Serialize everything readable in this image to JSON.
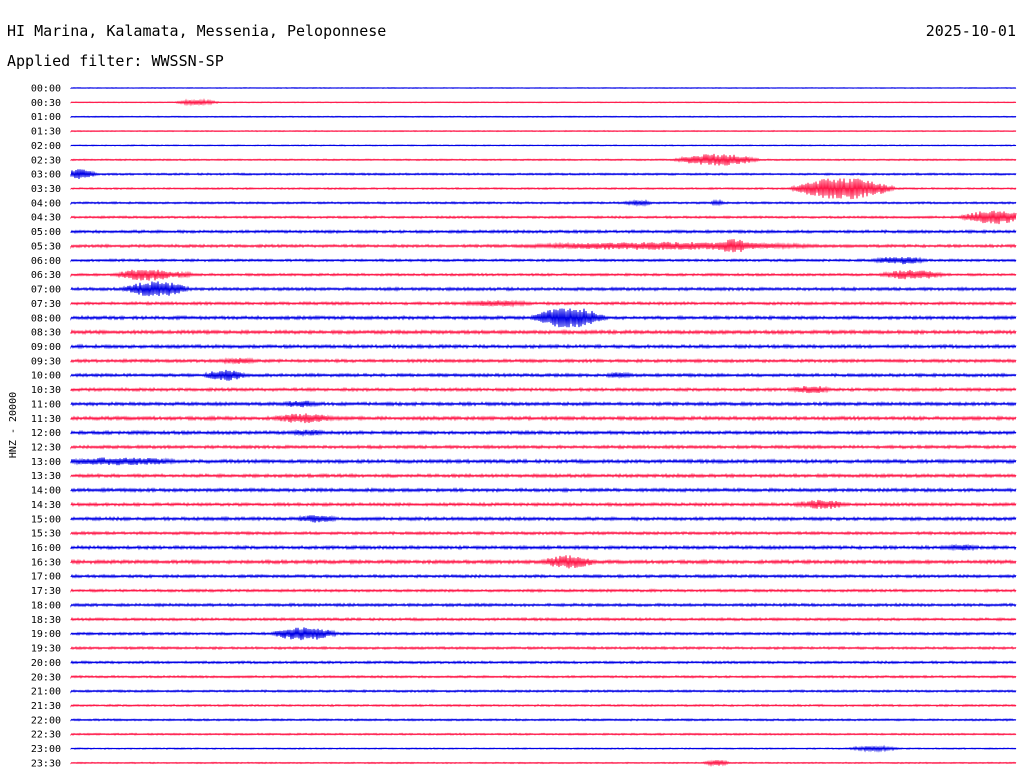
{
  "header": {
    "station": "HI Marina, Kalamata, Messenia, Peloponnese",
    "date": "2025-10-01",
    "filter": "Applied filter: WWSSN-SP"
  },
  "colors": {
    "even_row": "#0000e6",
    "odd_row": "#ff1a4a"
  },
  "chart_data": {
    "type": "line",
    "subtype": "helicorder",
    "ylabel": "HNZ - 20000",
    "row_labels": [
      "00:00",
      "00:30",
      "01:00",
      "01:30",
      "02:00",
      "02:30",
      "03:00",
      "03:30",
      "04:00",
      "04:30",
      "05:00",
      "05:30",
      "06:00",
      "06:30",
      "07:00",
      "07:30",
      "08:00",
      "08:30",
      "09:00",
      "09:30",
      "10:00",
      "10:30",
      "11:00",
      "11:30",
      "12:00",
      "12:30",
      "13:00",
      "13:30",
      "14:00",
      "14:30",
      "15:00",
      "15:30",
      "16:00",
      "16:30",
      "17:00",
      "17:30",
      "18:00",
      "18:30",
      "19:00",
      "19:30",
      "20:00",
      "20:30",
      "21:00",
      "21:30",
      "22:00",
      "22:30",
      "23:00",
      "23:30"
    ],
    "noise_level": [
      0.4,
      0.4,
      0.5,
      0.5,
      0.5,
      0.7,
      0.9,
      0.8,
      0.9,
      1.0,
      1.3,
      1.3,
      1.1,
      1.1,
      1.4,
      1.3,
      1.5,
      1.6,
      1.5,
      1.4,
      1.4,
      1.4,
      1.5,
      1.6,
      1.5,
      1.4,
      1.6,
      1.5,
      1.5,
      1.4,
      1.5,
      1.3,
      1.5,
      1.6,
      1.3,
      1.2,
      1.3,
      1.2,
      1.2,
      1.1,
      1.1,
      1.0,
      1.0,
      0.9,
      0.9,
      0.8,
      0.6,
      0.6
    ],
    "events": [
      {
        "row": "00:30",
        "minute": 4.0,
        "amplitude": 2.5,
        "duration": 0.8
      },
      {
        "row": "02:30",
        "minute": 20.5,
        "amplitude": 6,
        "duration": 1.5
      },
      {
        "row": "03:00",
        "minute": 0.3,
        "amplitude": 5,
        "duration": 0.6
      },
      {
        "row": "03:30",
        "minute": 24.5,
        "amplitude": 11,
        "duration": 1.8
      },
      {
        "row": "04:00",
        "minute": 18.0,
        "amplitude": 2.5,
        "duration": 0.6
      },
      {
        "row": "04:00",
        "minute": 20.5,
        "amplitude": 2.5,
        "duration": 0.3
      },
      {
        "row": "04:30",
        "minute": 29.3,
        "amplitude": 7,
        "duration": 1.2
      },
      {
        "row": "05:30",
        "minute": 19.0,
        "amplitude": 4,
        "duration": 6.0
      },
      {
        "row": "05:30",
        "minute": 21.0,
        "amplitude": 7,
        "duration": 0.8
      },
      {
        "row": "06:00",
        "minute": 26.3,
        "amplitude": 4,
        "duration": 1.0
      },
      {
        "row": "06:30",
        "minute": 2.4,
        "amplitude": 6,
        "duration": 1.2
      },
      {
        "row": "06:30",
        "minute": 3.5,
        "amplitude": 3,
        "duration": 0.5
      },
      {
        "row": "06:30",
        "minute": 26.7,
        "amplitude": 5,
        "duration": 1.2
      },
      {
        "row": "07:00",
        "minute": 2.7,
        "amplitude": 8,
        "duration": 1.2
      },
      {
        "row": "07:30",
        "minute": 13.5,
        "amplitude": 3,
        "duration": 1.5
      },
      {
        "row": "08:00",
        "minute": 15.8,
        "amplitude": 11,
        "duration": 1.3
      },
      {
        "row": "09:30",
        "minute": 5.3,
        "amplitude": 3,
        "duration": 0.8
      },
      {
        "row": "10:00",
        "minute": 4.9,
        "amplitude": 6,
        "duration": 0.8
      },
      {
        "row": "10:00",
        "minute": 17.4,
        "amplitude": 3,
        "duration": 0.5
      },
      {
        "row": "10:30",
        "minute": 23.5,
        "amplitude": 4,
        "duration": 0.8
      },
      {
        "row": "11:00",
        "minute": 7.3,
        "amplitude": 3.5,
        "duration": 0.8
      },
      {
        "row": "11:30",
        "minute": 7.4,
        "amplitude": 5,
        "duration": 1.2
      },
      {
        "row": "12:00",
        "minute": 7.5,
        "amplitude": 3,
        "duration": 0.8
      },
      {
        "row": "13:00",
        "minute": 1.5,
        "amplitude": 4,
        "duration": 2.5
      },
      {
        "row": "13:00",
        "minute": 2.7,
        "amplitude": 3,
        "duration": 0.6
      },
      {
        "row": "14:30",
        "minute": 23.8,
        "amplitude": 5,
        "duration": 1.0
      },
      {
        "row": "15:00",
        "minute": 7.8,
        "amplitude": 4,
        "duration": 0.8
      },
      {
        "row": "16:00",
        "minute": 28.2,
        "amplitude": 3,
        "duration": 0.8
      },
      {
        "row": "16:30",
        "minute": 15.8,
        "amplitude": 7,
        "duration": 1.0
      },
      {
        "row": "19:00",
        "minute": 7.4,
        "amplitude": 7,
        "duration": 1.2
      },
      {
        "row": "23:00",
        "minute": 25.5,
        "amplitude": 2.5,
        "duration": 1.0
      },
      {
        "row": "23:30",
        "minute": 20.5,
        "amplitude": 3,
        "duration": 0.5
      }
    ]
  }
}
